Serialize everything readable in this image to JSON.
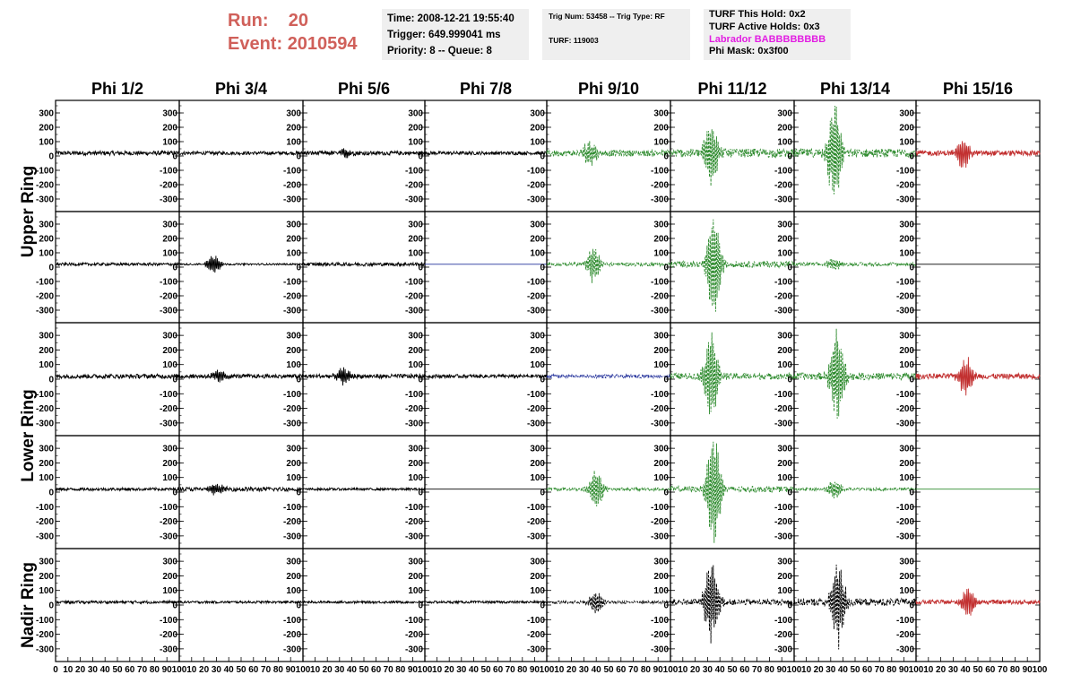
{
  "header": {
    "run_label": "Run:",
    "run_value": "20",
    "event_label": "Event:",
    "event_value": "2010594"
  },
  "time_box": {
    "time": "Time: 2008-12-21 19:55:40",
    "trigger": "Trigger: 649.999041 ms",
    "priority": "Priority: 8 -- Queue: 8"
  },
  "trig_box": {
    "trig": "Trig Num: 53458 -- Trig Type: RF",
    "turf": "TURF: 119003"
  },
  "turf_box": {
    "hold": "TURF This Hold: 0x2",
    "active": "TURF Active Holds: 0x3",
    "labrador": "Labrador BABBBBBBBB",
    "phimask": "Phi Mask: 0x3f00"
  },
  "colors": {
    "black": "#000000",
    "green": "#2e8b2e",
    "red": "#c23030",
    "blue": "#22309a",
    "run_text": "#d0605a",
    "labrador": "#e21ee2"
  },
  "chart_data": {
    "type": "line",
    "columns": [
      "Phi 1/2",
      "Phi 3/4",
      "Phi 5/6",
      "Phi 7/8",
      "Phi 9/10",
      "Phi 11/12",
      "Phi 13/14",
      "Phi 15/16"
    ],
    "row_labels": [
      {
        "text": "Upper Ring"
      },
      {
        "text": "Lower Ring"
      },
      {
        "text": "Nadir Ring"
      }
    ],
    "y_ticks": [
      "300",
      "200",
      "100",
      "0",
      "-100",
      "-200",
      "-300"
    ],
    "ylim": [
      -350,
      350
    ],
    "xlim": [
      0,
      100
    ],
    "x_ticks_first": [
      "0",
      "10",
      "20",
      "30",
      "40",
      "50",
      "60",
      "70",
      "80",
      "90",
      "100"
    ],
    "x_ticks": [
      "10",
      "20",
      "30",
      "40",
      "50",
      "60",
      "70",
      "80",
      "90",
      "100"
    ],
    "channels": [
      [
        "black",
        "black",
        "black",
        "black",
        "green",
        "green",
        "green",
        "red"
      ],
      [
        "black",
        "black",
        "black",
        "blue",
        "green",
        "green",
        "green",
        "black"
      ],
      [
        "black",
        "black",
        "black",
        "black",
        "blue",
        "green",
        "green",
        "red"
      ],
      [
        "black",
        "black",
        "black",
        "black",
        "green",
        "green",
        "green",
        "green"
      ],
      [
        "black",
        "black",
        "black",
        "black",
        "black",
        "black",
        "black",
        "red"
      ]
    ],
    "dashed": [
      [
        false,
        false,
        false,
        false,
        true,
        true,
        true,
        false
      ],
      [
        false,
        false,
        false,
        false,
        true,
        true,
        true,
        false
      ],
      [
        false,
        false,
        false,
        false,
        true,
        true,
        true,
        false
      ],
      [
        false,
        false,
        false,
        false,
        true,
        true,
        true,
        false
      ],
      [
        false,
        false,
        false,
        false,
        true,
        true,
        true,
        false
      ]
    ],
    "noise_amplitude": [
      [
        15,
        12,
        14,
        12,
        22,
        30,
        30,
        18
      ],
      [
        10,
        6,
        12,
        0,
        12,
        22,
        12,
        0
      ],
      [
        15,
        14,
        15,
        12,
        12,
        22,
        25,
        18
      ],
      [
        10,
        14,
        8,
        0,
        10,
        20,
        10,
        0
      ],
      [
        10,
        8,
        8,
        8,
        10,
        20,
        25,
        15
      ]
    ],
    "pulse_peak": [
      [
        0,
        0,
        30,
        0,
        80,
        220,
        340,
        100
      ],
      [
        0,
        60,
        0,
        0,
        110,
        340,
        40,
        0
      ],
      [
        0,
        40,
        50,
        0,
        0,
        280,
        320,
        120
      ],
      [
        0,
        40,
        0,
        0,
        130,
        370,
        60,
        0
      ],
      [
        0,
        0,
        0,
        0,
        70,
        260,
        260,
        90
      ]
    ],
    "pulse_center": [
      [
        0,
        0,
        35,
        0,
        35,
        33,
        33,
        38
      ],
      [
        0,
        28,
        0,
        0,
        38,
        35,
        33,
        0
      ],
      [
        0,
        32,
        33,
        0,
        0,
        33,
        35,
        40
      ],
      [
        0,
        30,
        0,
        0,
        40,
        35,
        33,
        0
      ],
      [
        0,
        0,
        0,
        0,
        40,
        33,
        36,
        42
      ]
    ]
  }
}
